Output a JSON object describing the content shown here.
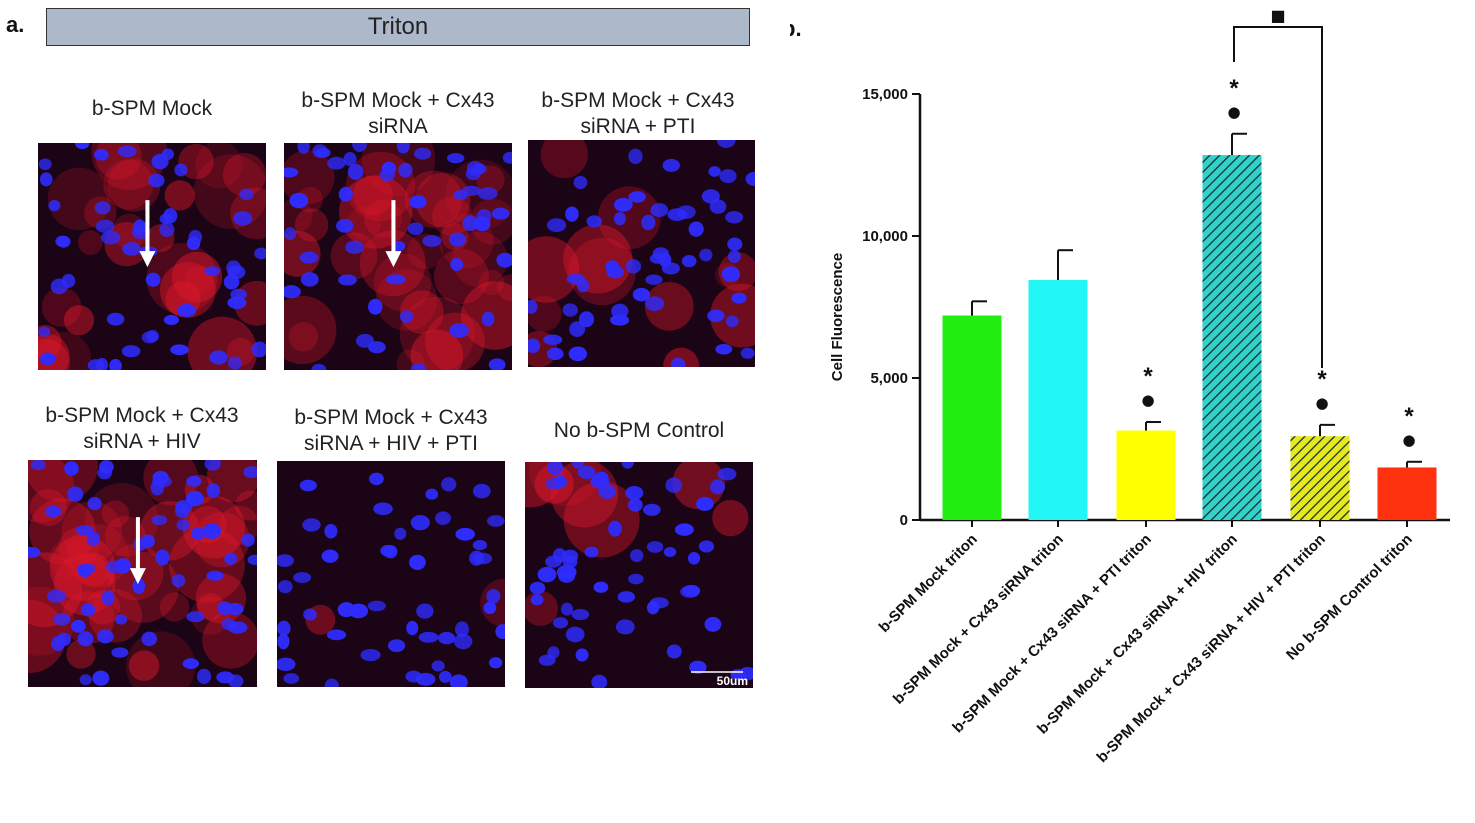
{
  "panel_a": {
    "letter": "a.",
    "header": "Triton",
    "images": [
      {
        "title": "b-SPM Mock",
        "red": 0.75,
        "arrow": true
      },
      {
        "title": "b-SPM Mock + Cx43\nsiRNA",
        "red": 0.9,
        "arrow": true
      },
      {
        "title": "b-SPM Mock + Cx43\nsiRNA + PTI",
        "red": 0.3,
        "arrow": false
      },
      {
        "title": "b-SPM Mock + Cx43\nsiRNA + HIV",
        "red": 1.0,
        "arrow": true
      },
      {
        "title": "b-SPM Mock + Cx43\nsiRNA + HIV + PTI",
        "red": 0.05,
        "arrow": false
      },
      {
        "title": "No b-SPM Control",
        "red": 0.2,
        "arrow": false
      }
    ],
    "scale_bar_label": "50um"
  },
  "chart_data": {
    "type": "bar",
    "panel_letter": "b.",
    "title": "",
    "xlabel": "",
    "ylabel": "Cell Fluorescence",
    "ylim": [
      0,
      15000
    ],
    "yticks": [
      0,
      5000,
      10000,
      15000
    ],
    "ytick_labels": [
      "0",
      "5,000",
      "10,000",
      "15,000"
    ],
    "categories": [
      "b-SPM Mock triton",
      "b-SPM Mock + Cx43 siRNA triton",
      "b-SPM Mock + Cx43 siRNA + PTI triton",
      "b-SPM Mock + Cx43 siRNA + HIV triton",
      "b-SPM Mock + Cx43 siRNA + HIV + PTI triton",
      "No b-SPM Control triton"
    ],
    "values": [
      7200,
      8450,
      3150,
      12850,
      2950,
      1850
    ],
    "errors": [
      500,
      1050,
      300,
      750,
      400,
      200
    ],
    "colors": [
      "#22ee11",
      "#22f6f6",
      "#ffff00",
      "#33d1c9",
      "#e8e81e",
      "#ff3210"
    ],
    "hatched": [
      false,
      false,
      false,
      true,
      true,
      false
    ],
    "annotations": [
      "",
      "",
      "*\n●",
      "*\n●",
      "*\n●",
      "*\n●"
    ],
    "significance_bracket": {
      "from_index": 3,
      "to_index": 4,
      "marker": "■"
    }
  }
}
